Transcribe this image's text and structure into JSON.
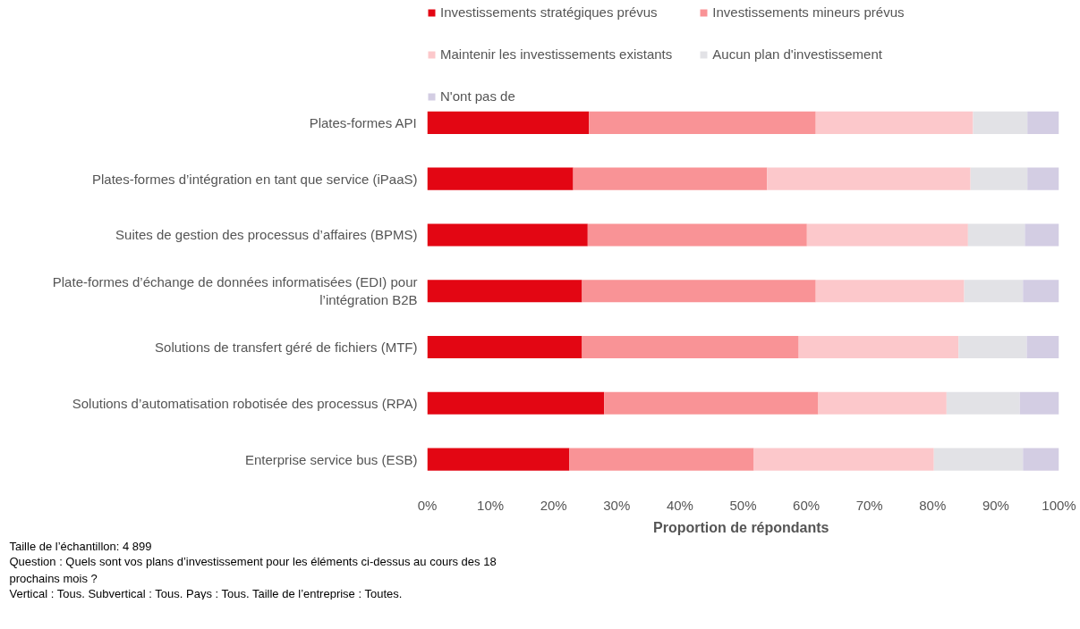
{
  "chart_data": {
    "type": "bar",
    "orientation": "horizontal",
    "stacked": true,
    "xlabel": "Proportion  de répondants",
    "categories": [
      "Plates-formes API",
      "Plates-formes d’intégration en tant que service (iPaaS)",
      "Suites de gestion des processus d’affaires (BPMS)",
      "Plate-formes d’échange de données informatisées (EDI) pour\nl’intégration B2B",
      "Solutions de transfert géré de fichiers (MTF)",
      "Solutions d’automatisation robotisée des processus (RPA)",
      "Enterprise service bus (ESB)"
    ],
    "series": [
      {
        "name": "Investissements stratégiques prévus",
        "color": "#e30613",
        "values": [
          25.6,
          23.1,
          25.4,
          24.5,
          24.5,
          28.0,
          22.5
        ]
      },
      {
        "name": "Investissements mineurs prévus",
        "color": "#f99396",
        "values": [
          35.9,
          30.7,
          34.7,
          37.0,
          34.3,
          33.9,
          29.2
        ]
      },
      {
        "name": "Maintenir les investissements existants",
        "color": "#fcc8cb",
        "values": [
          24.9,
          32.2,
          25.5,
          23.5,
          25.3,
          20.3,
          28.5
        ]
      },
      {
        "name": "Aucun plan d'investissement",
        "color": "#e2e2e6",
        "values": [
          8.6,
          9.0,
          9.0,
          9.3,
          10.8,
          11.6,
          14.1
        ]
      },
      {
        "name": "N'ont pas de",
        "color": "#d3cde3",
        "values": [
          5.0,
          5.0,
          5.4,
          5.7,
          5.1,
          6.2,
          5.7
        ]
      }
    ],
    "xlim": [
      0,
      100
    ],
    "xticks": [
      {
        "value": 0,
        "label": "0%"
      },
      {
        "value": 10,
        "label": "10%"
      },
      {
        "value": 20,
        "label": "20%"
      },
      {
        "value": 30,
        "label": "30%"
      },
      {
        "value": 40,
        "label": "40%"
      },
      {
        "value": 50,
        "label": "50%"
      },
      {
        "value": 60,
        "label": "60%"
      },
      {
        "value": 70,
        "label": "70%"
      },
      {
        "value": 80,
        "label": "80%"
      },
      {
        "value": 90,
        "label": "90%"
      },
      {
        "value": 100,
        "label": "100%"
      }
    ],
    "grid": false,
    "legend": "top",
    "annotations": [
      "Taille de l’échantillon: 4 899",
      "Question : Quels sont vos plans d’investissement pour les éléments ci-dessus au cours des 18\nprochains mois ?",
      "Vertical : Tous. Subvertical : Tous. Pays : Tous. Taille de l’entreprise : Toutes."
    ]
  }
}
